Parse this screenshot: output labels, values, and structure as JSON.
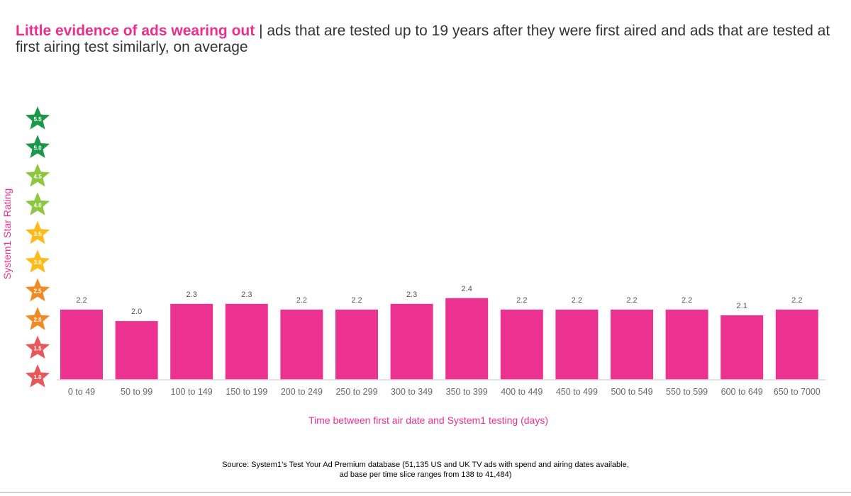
{
  "title": {
    "highlight": "Little evidence of ads wearing out",
    "separator": " | ",
    "rest": "ads that are tested up to 19 years after they were first aired and ads that are tested at first airing test similarly, on average"
  },
  "colors": {
    "bar": "#ec3291",
    "accent": "#ec2f8f"
  },
  "chart_data": {
    "type": "bar",
    "title": "Little evidence of ads wearing out",
    "xlabel": "Time between first air date and System1 testing (days)",
    "ylabel": "System1 Star Rating",
    "ylim": [
      1.0,
      5.5
    ],
    "grid": false,
    "categories": [
      "0 to 49",
      "50 to 99",
      "100 to 149",
      "150 to 199",
      "200 to 249",
      "250 to 299",
      "300 to 349",
      "350 to 399",
      "400 to 449",
      "450 to 499",
      "500 to 549",
      "550 to 599",
      "600 to 649",
      "650 to 7000"
    ],
    "values": [
      2.2,
      2.0,
      2.3,
      2.3,
      2.2,
      2.2,
      2.3,
      2.4,
      2.2,
      2.2,
      2.2,
      2.2,
      2.1,
      2.2
    ],
    "value_labels": [
      "2.2",
      "2.0",
      "2.3",
      "2.3",
      "2.2",
      "2.2",
      "2.3",
      "2.4",
      "2.2",
      "2.2",
      "2.2",
      "2.2",
      "2.1",
      "2.2"
    ],
    "y_ticks": [
      {
        "label": "5.5",
        "value": 5.5,
        "color": "#1a9a48"
      },
      {
        "label": "5.0",
        "value": 5.0,
        "color": "#1a9a48"
      },
      {
        "label": "4.5",
        "value": 4.5,
        "color": "#8dc63f"
      },
      {
        "label": "4.0",
        "value": 4.0,
        "color": "#8dc63f"
      },
      {
        "label": "3.5",
        "value": 3.5,
        "color": "#fdbb1a"
      },
      {
        "label": "3.0",
        "value": 3.0,
        "color": "#fdbb1a"
      },
      {
        "label": "2.5",
        "value": 2.5,
        "color": "#f08a24"
      },
      {
        "label": "2.0",
        "value": 2.0,
        "color": "#f08a24"
      },
      {
        "label": "1.5",
        "value": 1.5,
        "color": "#e8585a"
      },
      {
        "label": "1.0",
        "value": 1.0,
        "color": "#e8585a"
      }
    ]
  },
  "source": {
    "line1": "Source: System1’s Test Your Ad Premium database (51,135 US and UK TV ads with spend and airing dates available,",
    "line2": "ad base per time slice ranges from 138 to 41,484)"
  }
}
